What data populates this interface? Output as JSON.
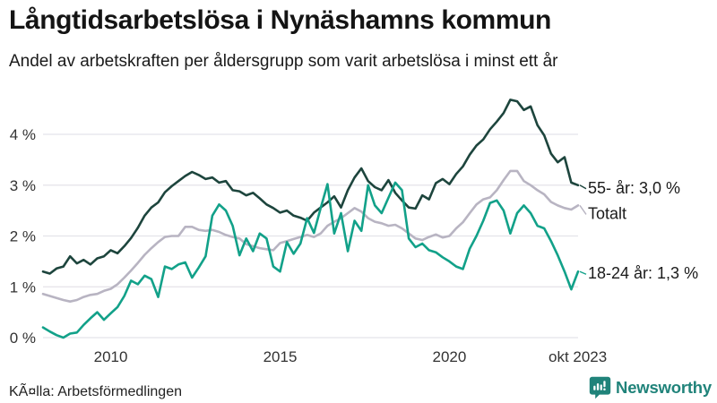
{
  "header": {
    "title": "Långtidsarbetslösa i Nynäshamns kommun",
    "subtitle": "Andel av arbetskraften per åldersgrupp som varit arbetslösa i minst ett år"
  },
  "footer": {
    "source": "KÃ¤lla: Arbetsförmedlingen",
    "brand": "Newsworthy"
  },
  "colors": {
    "series_55": "#1d453d",
    "series_total": "#b8b4c2",
    "series_1824": "#12a189",
    "gridline": "#e4e3e9",
    "tick_text": "#333333",
    "annotation_text": "#1a1a1a",
    "brand_teal": "#20837a"
  },
  "chart_data": {
    "type": "line",
    "title": "Långtidsarbetslösa i Nynäshamns kommun",
    "subtitle": "Andel av arbetskraften per åldersgrupp som varit arbetslösa i minst ett år",
    "unit": "% av arbetskraften",
    "grid": "horizontal-only",
    "legend_position": "right-end-labels",
    "x_axis": {
      "range": [
        2008.0,
        2023.8
      ],
      "ticks": [
        2010,
        2015,
        2020,
        2023.79
      ],
      "tick_labels": [
        "2010",
        "2015",
        "2020",
        "okt 2023"
      ]
    },
    "y_axis": {
      "range": [
        0,
        4.75
      ],
      "ticks": [
        0,
        1,
        2,
        3,
        4
      ],
      "tick_labels": [
        "0 %",
        "1 %",
        "2 %",
        "3 %",
        "4 %"
      ]
    },
    "x": [
      2008.0,
      2008.2,
      2008.4,
      2008.6,
      2008.8,
      2009.0,
      2009.2,
      2009.4,
      2009.6,
      2009.8,
      2010.0,
      2010.2,
      2010.4,
      2010.6,
      2010.8,
      2011.0,
      2011.2,
      2011.4,
      2011.6,
      2011.8,
      2012.0,
      2012.2,
      2012.4,
      2012.6,
      2012.8,
      2013.0,
      2013.2,
      2013.4,
      2013.6,
      2013.8,
      2014.0,
      2014.2,
      2014.4,
      2014.6,
      2014.8,
      2015.0,
      2015.2,
      2015.4,
      2015.6,
      2015.8,
      2016.0,
      2016.2,
      2016.4,
      2016.6,
      2016.8,
      2017.0,
      2017.2,
      2017.4,
      2017.6,
      2017.8,
      2018.0,
      2018.2,
      2018.4,
      2018.6,
      2018.8,
      2019.0,
      2019.2,
      2019.4,
      2019.6,
      2019.8,
      2020.0,
      2020.2,
      2020.4,
      2020.6,
      2020.8,
      2021.0,
      2021.2,
      2021.4,
      2021.6,
      2021.8,
      2022.0,
      2022.2,
      2022.4,
      2022.6,
      2022.8,
      2023.0,
      2023.2,
      2023.4,
      2023.6,
      2023.8
    ],
    "series": [
      {
        "name": "55- år",
        "end_label": "55- år: 3,0 %",
        "end_value_label": "3,0 %",
        "color": "#1d453d",
        "values": [
          1.3,
          1.26,
          1.36,
          1.4,
          1.6,
          1.46,
          1.53,
          1.44,
          1.56,
          1.6,
          1.72,
          1.66,
          1.8,
          1.96,
          2.16,
          2.4,
          2.56,
          2.66,
          2.86,
          2.98,
          3.08,
          3.18,
          3.26,
          3.2,
          3.12,
          3.15,
          3.05,
          3.08,
          2.9,
          2.88,
          2.8,
          2.85,
          2.74,
          2.62,
          2.55,
          2.46,
          2.5,
          2.4,
          2.36,
          2.3,
          2.46,
          2.56,
          2.66,
          2.78,
          2.56,
          2.9,
          3.15,
          3.33,
          3.08,
          2.96,
          2.9,
          3.1,
          2.85,
          2.7,
          2.56,
          2.54,
          2.8,
          2.72,
          3.04,
          3.12,
          3.02,
          3.22,
          3.37,
          3.6,
          3.78,
          3.9,
          4.1,
          4.25,
          4.42,
          4.68,
          4.65,
          4.48,
          4.55,
          4.18,
          3.98,
          3.62,
          3.45,
          3.55,
          3.05,
          3.0
        ]
      },
      {
        "name": "Totalt",
        "end_label": "Totalt",
        "end_value_label": "",
        "color": "#b8b4c2",
        "values": [
          0.86,
          0.82,
          0.78,
          0.74,
          0.71,
          0.74,
          0.8,
          0.84,
          0.86,
          0.92,
          0.96,
          1.05,
          1.18,
          1.32,
          1.47,
          1.63,
          1.76,
          1.88,
          1.98,
          2.0,
          2.0,
          2.18,
          2.18,
          2.12,
          2.1,
          2.12,
          2.08,
          2.02,
          1.98,
          1.95,
          1.84,
          1.8,
          1.76,
          1.74,
          1.72,
          1.86,
          1.9,
          1.94,
          1.98,
          2.02,
          1.98,
          2.05,
          2.2,
          2.28,
          2.35,
          2.45,
          2.55,
          2.48,
          2.35,
          2.28,
          2.25,
          2.2,
          2.22,
          2.15,
          2.05,
          1.95,
          1.92,
          1.98,
          2.03,
          1.97,
          2.0,
          2.15,
          2.27,
          2.45,
          2.62,
          2.72,
          2.76,
          2.9,
          3.1,
          3.28,
          3.28,
          3.08,
          3.0,
          2.9,
          2.82,
          2.67,
          2.6,
          2.55,
          2.52,
          2.6
        ]
      },
      {
        "name": "18-24 år",
        "end_label": "18-24 år: 1,3 %",
        "end_value_label": "1,3 %",
        "color": "#12a189",
        "values": [
          0.2,
          0.12,
          0.05,
          0.0,
          0.08,
          0.1,
          0.25,
          0.38,
          0.5,
          0.35,
          0.48,
          0.6,
          0.82,
          1.12,
          1.05,
          1.22,
          1.15,
          0.8,
          1.4,
          1.35,
          1.44,
          1.48,
          1.18,
          1.38,
          1.6,
          2.4,
          2.62,
          2.5,
          2.2,
          1.62,
          1.95,
          1.7,
          2.05,
          1.95,
          1.4,
          1.3,
          1.88,
          1.65,
          1.85,
          2.35,
          2.06,
          2.55,
          3.02,
          2.05,
          2.45,
          1.7,
          2.3,
          2.1,
          3.0,
          2.6,
          2.45,
          2.75,
          3.05,
          2.9,
          1.95,
          1.78,
          1.85,
          1.72,
          1.68,
          1.58,
          1.5,
          1.4,
          1.35,
          1.75,
          2.0,
          2.3,
          2.65,
          2.7,
          2.5,
          2.05,
          2.45,
          2.6,
          2.45,
          2.2,
          2.15,
          1.9,
          1.62,
          1.3,
          0.95,
          1.3
        ]
      }
    ]
  }
}
